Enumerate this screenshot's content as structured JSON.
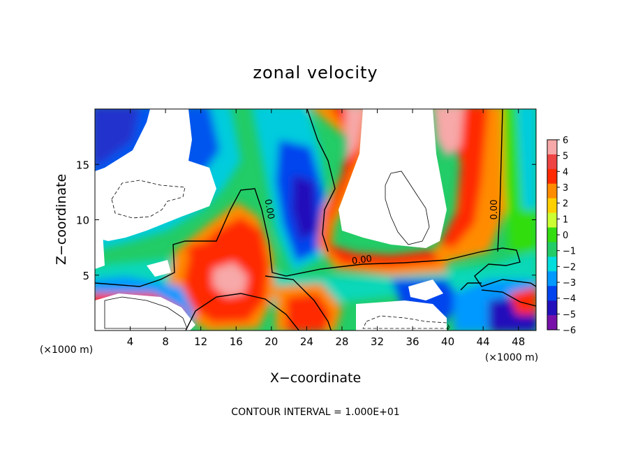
{
  "chart_data": {
    "type": "heatmap",
    "title": "zonal velocity",
    "xlabel": "X−coordinate",
    "ylabel": "Z−coordinate",
    "x_unit_left": "(×1000 m)",
    "x_unit_right": "(×1000 m)",
    "footer": "CONTOUR INTERVAL = 1.000E+01",
    "xlim": [
      0,
      50
    ],
    "ylim": [
      0,
      20
    ],
    "x_ticks": [
      4,
      8,
      12,
      16,
      20,
      24,
      28,
      32,
      36,
      40,
      44,
      48
    ],
    "y_ticks": [
      5,
      10,
      15
    ],
    "colorbar": {
      "values": [
        6,
        5,
        4,
        3,
        2,
        1,
        0,
        -1,
        -2,
        -3,
        -4,
        -5,
        -6
      ],
      "labels": [
        "6",
        "5",
        "4",
        "3",
        "2",
        "1",
        "0",
        "−1",
        "−2",
        "−3",
        "−4",
        "−5",
        "−6"
      ],
      "colors": [
        "#f7a8a8",
        "#ee4444",
        "#ff2a00",
        "#ff8c00",
        "#ffd000",
        "#ccff33",
        "#33dd11",
        "#22cc66",
        "#00dddd",
        "#0099ff",
        "#0044ee",
        "#2211bb",
        "#7711aa"
      ],
      "range": [
        -6,
        6
      ]
    },
    "contour_labels": [
      "0.00",
      "0.00",
      "0.00"
    ],
    "grid": false
  }
}
